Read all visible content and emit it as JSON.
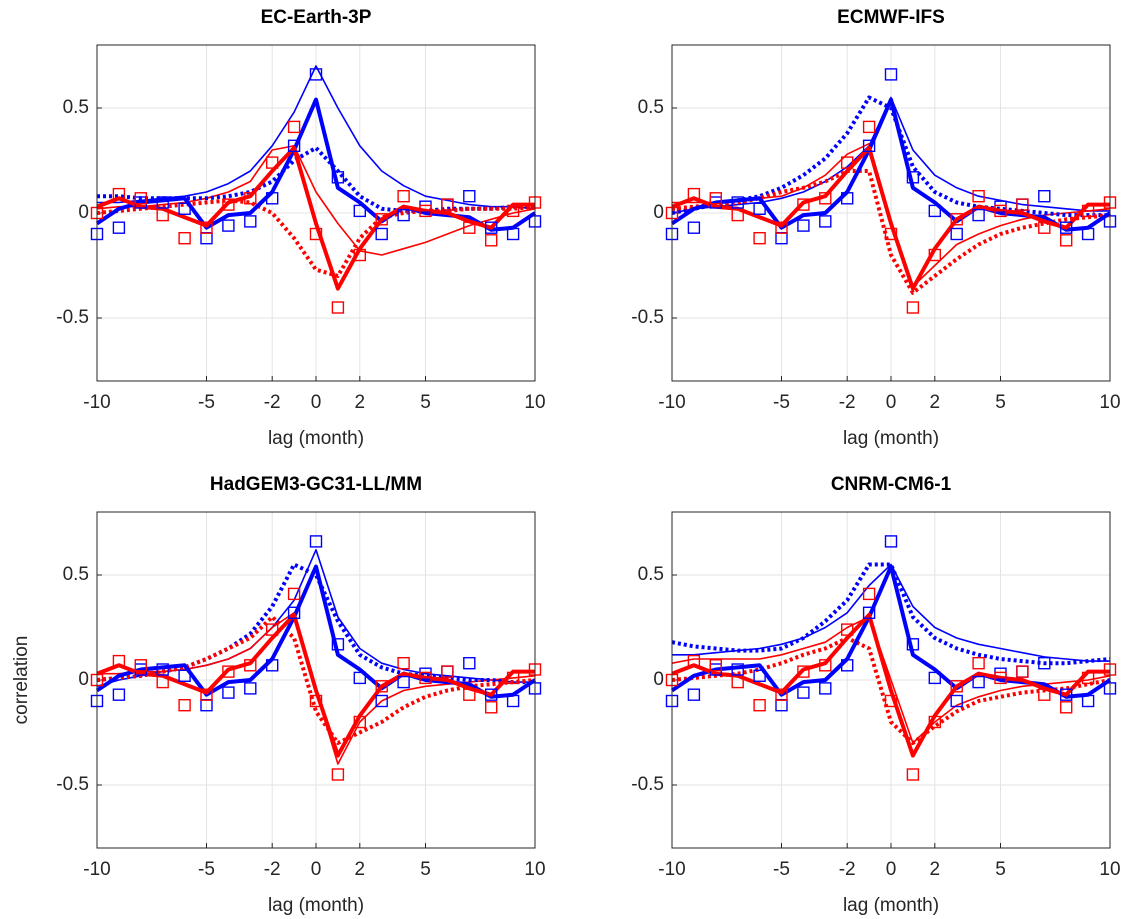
{
  "chart_data": [
    {
      "type": "line",
      "title": "EC-Earth-3P",
      "xlabel": "lag (month)",
      "grid": true,
      "x": [
        -10,
        -9,
        -8,
        -7,
        -6,
        -5,
        -4,
        -3,
        -2,
        -1,
        0,
        1,
        2,
        3,
        4,
        5,
        6,
        7,
        8,
        9,
        10
      ],
      "xlim": [
        -10,
        10
      ],
      "xticks": [
        -10,
        -5,
        -2,
        0,
        2,
        5,
        10
      ],
      "ylim": [
        -0.8,
        0.8
      ],
      "yticks": [
        -0.5,
        0,
        0.5
      ],
      "series": [
        {
          "color": "#0000ff",
          "style": "thin",
          "values": [
            0.05,
            0.05,
            0.06,
            0.07,
            0.08,
            0.1,
            0.14,
            0.2,
            0.32,
            0.48,
            0.7,
            0.5,
            0.32,
            0.2,
            0.13,
            0.08,
            0.06,
            0.04,
            0.03,
            0.03,
            0.02
          ]
        },
        {
          "color": "#ff0000",
          "style": "thin",
          "values": [
            0.02,
            0.03,
            0.03,
            0.04,
            0.05,
            0.07,
            0.1,
            0.15,
            0.3,
            0.32,
            0.1,
            -0.05,
            -0.18,
            -0.2,
            -0.17,
            -0.14,
            -0.1,
            -0.06,
            -0.03,
            0.0,
            0.02
          ]
        },
        {
          "color": "#0000ff",
          "style": "dotted",
          "values": [
            0.08,
            0.08,
            0.07,
            0.07,
            0.07,
            0.07,
            0.08,
            0.1,
            0.15,
            0.25,
            0.31,
            0.2,
            0.08,
            0.02,
            0.01,
            0.01,
            0.02,
            0.02,
            0.02,
            0.03,
            0.03
          ]
        },
        {
          "color": "#ff0000",
          "style": "dotted",
          "values": [
            0.0,
            0.01,
            0.02,
            0.03,
            0.04,
            0.05,
            0.06,
            0.05,
            0.0,
            -0.12,
            -0.27,
            -0.3,
            -0.12,
            -0.02,
            0.0,
            0.01,
            0.01,
            0.02,
            0.02,
            0.02,
            0.03
          ]
        },
        {
          "color": "#0000ff",
          "style": "thick",
          "values": [
            -0.05,
            0.02,
            0.05,
            0.06,
            0.07,
            -0.07,
            -0.01,
            0.0,
            0.1,
            0.3,
            0.54,
            0.12,
            0.05,
            -0.04,
            0.03,
            0.0,
            -0.01,
            -0.02,
            -0.08,
            -0.07,
            0.0
          ]
        },
        {
          "color": "#ff0000",
          "style": "thick",
          "values": [
            0.03,
            0.07,
            0.03,
            0.02,
            -0.02,
            -0.06,
            0.05,
            0.08,
            0.2,
            0.31,
            -0.05,
            -0.36,
            -0.17,
            -0.03,
            0.03,
            0.01,
            0.0,
            -0.04,
            -0.07,
            0.04,
            0.04
          ]
        },
        {
          "color": "#0000ff",
          "style": "square",
          "values": [
            -0.1,
            -0.07,
            0.05,
            0.05,
            0.02,
            -0.12,
            -0.06,
            -0.04,
            0.07,
            0.32,
            0.66,
            0.17,
            0.01,
            -0.1,
            -0.01,
            0.03,
            0.04,
            0.08,
            -0.07,
            -0.1,
            -0.04
          ]
        },
        {
          "color": "#ff0000",
          "style": "square",
          "values": [
            0.0,
            0.09,
            0.07,
            -0.01,
            -0.12,
            -0.07,
            0.04,
            0.07,
            0.24,
            0.41,
            -0.1,
            -0.45,
            -0.2,
            -0.03,
            0.08,
            0.01,
            0.04,
            -0.07,
            -0.13,
            0.01,
            0.05
          ]
        }
      ]
    },
    {
      "type": "line",
      "title": "ECMWF-IFS",
      "xlabel": "lag (month)",
      "grid": true,
      "x": [
        -10,
        -9,
        -8,
        -7,
        -6,
        -5,
        -4,
        -3,
        -2,
        -1,
        0,
        1,
        2,
        3,
        4,
        5,
        6,
        7,
        8,
        9,
        10
      ],
      "xlim": [
        -10,
        10
      ],
      "xticks": [
        -10,
        -5,
        -2,
        0,
        2,
        5,
        10
      ],
      "ylim": [
        -0.8,
        0.8
      ],
      "yticks": [
        -0.5,
        0,
        0.5
      ],
      "series": [
        {
          "color": "#0000ff",
          "style": "thin",
          "values": [
            0.0,
            0.02,
            0.03,
            0.04,
            0.05,
            0.07,
            0.1,
            0.15,
            0.22,
            0.32,
            0.55,
            0.3,
            0.18,
            0.12,
            0.08,
            0.06,
            0.04,
            0.03,
            0.02,
            0.01,
            0.01
          ]
        },
        {
          "color": "#ff0000",
          "style": "thin",
          "values": [
            0.05,
            0.05,
            0.05,
            0.06,
            0.07,
            0.08,
            0.12,
            0.18,
            0.28,
            0.33,
            -0.05,
            -0.35,
            -0.25,
            -0.15,
            -0.1,
            -0.06,
            -0.03,
            -0.01,
            0.0,
            0.01,
            0.02
          ]
        },
        {
          "color": "#0000ff",
          "style": "dotted",
          "values": [
            0.0,
            0.02,
            0.04,
            0.06,
            0.08,
            0.12,
            0.18,
            0.26,
            0.38,
            0.55,
            0.5,
            0.22,
            0.1,
            0.05,
            0.03,
            0.02,
            0.01,
            0.0,
            -0.01,
            -0.01,
            -0.01
          ]
        },
        {
          "color": "#ff0000",
          "style": "dotted",
          "values": [
            0.02,
            0.03,
            0.04,
            0.05,
            0.07,
            0.1,
            0.12,
            0.15,
            0.2,
            0.2,
            -0.2,
            -0.38,
            -0.3,
            -0.22,
            -0.15,
            -0.1,
            -0.07,
            -0.05,
            -0.03,
            -0.02,
            -0.01
          ]
        },
        {
          "color": "#0000ff",
          "style": "thick",
          "values": [
            -0.05,
            0.02,
            0.05,
            0.06,
            0.07,
            -0.07,
            -0.01,
            0.0,
            0.1,
            0.3,
            0.54,
            0.12,
            0.05,
            -0.04,
            0.03,
            0.0,
            -0.01,
            -0.02,
            -0.08,
            -0.07,
            0.0
          ]
        },
        {
          "color": "#ff0000",
          "style": "thick",
          "values": [
            0.03,
            0.07,
            0.03,
            0.02,
            -0.02,
            -0.06,
            0.05,
            0.08,
            0.2,
            0.31,
            -0.05,
            -0.36,
            -0.17,
            -0.03,
            0.03,
            0.01,
            0.0,
            -0.04,
            -0.07,
            0.04,
            0.04
          ]
        },
        {
          "color": "#0000ff",
          "style": "square",
          "values": [
            -0.1,
            -0.07,
            0.05,
            0.05,
            0.02,
            -0.12,
            -0.06,
            -0.04,
            0.07,
            0.32,
            0.66,
            0.17,
            0.01,
            -0.1,
            -0.01,
            0.03,
            0.04,
            0.08,
            -0.07,
            -0.1,
            -0.04
          ]
        },
        {
          "color": "#ff0000",
          "style": "square",
          "values": [
            0.0,
            0.09,
            0.07,
            -0.01,
            -0.12,
            -0.07,
            0.04,
            0.07,
            0.24,
            0.41,
            -0.1,
            -0.45,
            -0.2,
            -0.03,
            0.08,
            0.01,
            0.04,
            -0.07,
            -0.13,
            0.01,
            0.05
          ]
        }
      ]
    },
    {
      "type": "line",
      "title": "HadGEM3-GC31-LL/MM",
      "xlabel": "lag (month)",
      "ylabel": "correlation",
      "grid": true,
      "x": [
        -10,
        -9,
        -8,
        -7,
        -6,
        -5,
        -4,
        -3,
        -2,
        -1,
        0,
        1,
        2,
        3,
        4,
        5,
        6,
        7,
        8,
        9,
        10
      ],
      "xlim": [
        -10,
        10
      ],
      "xticks": [
        -10,
        -5,
        -2,
        0,
        2,
        5,
        10
      ],
      "ylim": [
        -0.8,
        0.8
      ],
      "yticks": [
        -0.5,
        0,
        0.5
      ],
      "series": [
        {
          "color": "#0000ff",
          "style": "thin",
          "values": [
            -0.03,
            0.0,
            0.02,
            0.04,
            0.05,
            0.07,
            0.1,
            0.15,
            0.25,
            0.38,
            0.62,
            0.3,
            0.15,
            0.08,
            0.05,
            0.03,
            0.02,
            0.01,
            0.0,
            -0.01,
            -0.01
          ]
        },
        {
          "color": "#ff0000",
          "style": "thin",
          "values": [
            0.03,
            0.03,
            0.04,
            0.04,
            0.05,
            0.07,
            0.1,
            0.15,
            0.25,
            0.32,
            -0.05,
            -0.4,
            -0.2,
            -0.1,
            -0.05,
            -0.03,
            -0.02,
            -0.01,
            0.0,
            0.01,
            0.02
          ]
        },
        {
          "color": "#0000ff",
          "style": "dotted",
          "values": [
            0.0,
            0.01,
            0.02,
            0.04,
            0.06,
            0.1,
            0.15,
            0.22,
            0.35,
            0.55,
            0.5,
            0.28,
            0.12,
            0.06,
            0.03,
            0.02,
            0.01,
            0.0,
            0.0,
            -0.01,
            -0.01
          ]
        },
        {
          "color": "#ff0000",
          "style": "dotted",
          "values": [
            0.0,
            0.01,
            0.02,
            0.04,
            0.06,
            0.1,
            0.15,
            0.2,
            0.3,
            0.2,
            -0.15,
            -0.3,
            -0.25,
            -0.2,
            -0.13,
            -0.08,
            -0.05,
            -0.03,
            -0.02,
            -0.01,
            0.0
          ]
        },
        {
          "color": "#0000ff",
          "style": "thick",
          "values": [
            -0.05,
            0.02,
            0.05,
            0.06,
            0.07,
            -0.07,
            -0.01,
            0.0,
            0.1,
            0.3,
            0.54,
            0.12,
            0.05,
            -0.04,
            0.03,
            0.0,
            -0.01,
            -0.02,
            -0.08,
            -0.07,
            0.0
          ]
        },
        {
          "color": "#ff0000",
          "style": "thick",
          "values": [
            0.03,
            0.07,
            0.03,
            0.02,
            -0.02,
            -0.06,
            0.05,
            0.08,
            0.2,
            0.31,
            -0.05,
            -0.36,
            -0.17,
            -0.03,
            0.03,
            0.01,
            0.0,
            -0.04,
            -0.07,
            0.04,
            0.04
          ]
        },
        {
          "color": "#0000ff",
          "style": "square",
          "values": [
            -0.1,
            -0.07,
            0.05,
            0.05,
            0.02,
            -0.12,
            -0.06,
            -0.04,
            0.07,
            0.32,
            0.66,
            0.17,
            0.01,
            -0.1,
            -0.01,
            0.03,
            0.04,
            0.08,
            -0.07,
            -0.1,
            -0.04
          ]
        },
        {
          "color": "#ff0000",
          "style": "square",
          "values": [
            0.0,
            0.09,
            0.07,
            -0.01,
            -0.12,
            -0.07,
            0.04,
            0.07,
            0.24,
            0.41,
            -0.1,
            -0.45,
            -0.2,
            -0.03,
            0.08,
            0.01,
            0.04,
            -0.07,
            -0.13,
            0.01,
            0.05
          ]
        }
      ]
    },
    {
      "type": "line",
      "title": "CNRM-CM6-1",
      "xlabel": "lag (month)",
      "grid": true,
      "x": [
        -10,
        -9,
        -8,
        -7,
        -6,
        -5,
        -4,
        -3,
        -2,
        -1,
        0,
        1,
        2,
        3,
        4,
        5,
        6,
        7,
        8,
        9,
        10
      ],
      "xlim": [
        -10,
        10
      ],
      "xticks": [
        -10,
        -5,
        -2,
        0,
        2,
        5,
        10
      ],
      "ylim": [
        -0.8,
        0.8
      ],
      "yticks": [
        -0.5,
        0,
        0.5
      ],
      "series": [
        {
          "color": "#0000ff",
          "style": "thin",
          "values": [
            0.12,
            0.12,
            0.13,
            0.14,
            0.15,
            0.17,
            0.2,
            0.25,
            0.32,
            0.45,
            0.55,
            0.35,
            0.25,
            0.2,
            0.17,
            0.15,
            0.13,
            0.11,
            0.1,
            0.09,
            0.09
          ]
        },
        {
          "color": "#ff0000",
          "style": "thin",
          "values": [
            0.08,
            0.1,
            0.1,
            0.1,
            0.1,
            0.12,
            0.15,
            0.18,
            0.25,
            0.3,
            0.0,
            -0.3,
            -0.2,
            -0.12,
            -0.08,
            -0.05,
            -0.03,
            -0.02,
            -0.01,
            0.0,
            0.02
          ]
        },
        {
          "color": "#0000ff",
          "style": "dotted",
          "values": [
            0.18,
            0.16,
            0.15,
            0.14,
            0.14,
            0.15,
            0.2,
            0.28,
            0.38,
            0.55,
            0.55,
            0.3,
            0.2,
            0.15,
            0.12,
            0.1,
            0.09,
            0.08,
            0.08,
            0.09,
            0.1
          ]
        },
        {
          "color": "#ff0000",
          "style": "dotted",
          "values": [
            0.0,
            0.01,
            0.02,
            0.03,
            0.05,
            0.08,
            0.12,
            0.15,
            0.2,
            0.15,
            -0.2,
            -0.3,
            -0.22,
            -0.15,
            -0.1,
            -0.08,
            -0.06,
            -0.05,
            -0.04,
            -0.02,
            0.0
          ]
        },
        {
          "color": "#0000ff",
          "style": "thick",
          "values": [
            -0.05,
            0.02,
            0.05,
            0.06,
            0.07,
            -0.07,
            -0.01,
            0.0,
            0.1,
            0.3,
            0.54,
            0.12,
            0.05,
            -0.04,
            0.03,
            0.0,
            -0.01,
            -0.02,
            -0.08,
            -0.07,
            0.0
          ]
        },
        {
          "color": "#ff0000",
          "style": "thick",
          "values": [
            0.03,
            0.07,
            0.03,
            0.02,
            -0.02,
            -0.06,
            0.05,
            0.08,
            0.2,
            0.31,
            -0.05,
            -0.36,
            -0.17,
            -0.03,
            0.03,
            0.01,
            0.0,
            -0.04,
            -0.07,
            0.04,
            0.04
          ]
        },
        {
          "color": "#0000ff",
          "style": "square",
          "values": [
            -0.1,
            -0.07,
            0.05,
            0.05,
            0.02,
            -0.12,
            -0.06,
            -0.04,
            0.07,
            0.32,
            0.66,
            0.17,
            0.01,
            -0.1,
            -0.01,
            0.03,
            0.04,
            0.08,
            -0.07,
            -0.1,
            -0.04
          ]
        },
        {
          "color": "#ff0000",
          "style": "square",
          "values": [
            0.0,
            0.09,
            0.07,
            -0.01,
            -0.12,
            -0.07,
            0.04,
            0.07,
            0.24,
            0.41,
            -0.1,
            -0.45,
            -0.2,
            -0.03,
            0.08,
            0.01,
            0.04,
            -0.07,
            -0.13,
            0.01,
            0.05
          ]
        }
      ]
    }
  ]
}
